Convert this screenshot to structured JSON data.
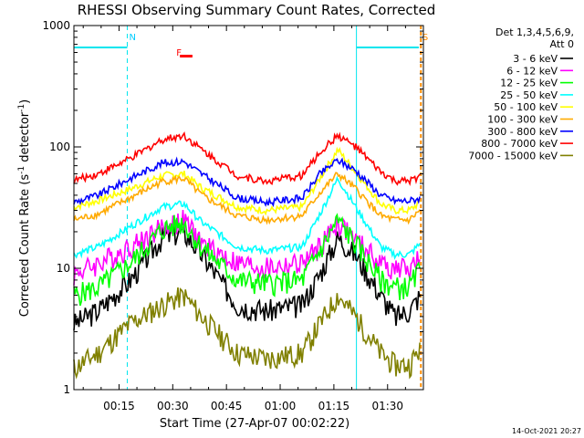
{
  "chart_data": {
    "type": "line",
    "title": "RHESSI Observing Summary Count Rates, Corrected",
    "xlabel": "Start Time (27-Apr-07 00:02:22)",
    "ylabel_main": "Corrected Count Rate (s",
    "ylabel_sup1": "-1",
    "ylabel_mid": " detector",
    "ylabel_sup2": "-1",
    "ylabel_end": ")",
    "x_unit": "minutes after 00:00",
    "xlim": [
      2.4,
      100.0
    ],
    "ylim": [
      1,
      1000
    ],
    "yscale": "log",
    "x_ticks": [
      {
        "value": 15,
        "label": "00:15"
      },
      {
        "value": 30,
        "label": "00:30"
      },
      {
        "value": 45,
        "label": "00:45"
      },
      {
        "value": 60,
        "label": "01:00"
      },
      {
        "value": 75,
        "label": "01:15"
      },
      {
        "value": 90,
        "label": "01:30"
      }
    ],
    "y_ticks": [
      {
        "value": 1,
        "label": "1"
      },
      {
        "value": 10,
        "label": "10"
      },
      {
        "value": 100,
        "label": "100"
      },
      {
        "value": 1000,
        "label": "1000"
      }
    ],
    "legend_header_1": "Det 1,3,4,5,6,9,",
    "legend_header_2": "Att 0",
    "legend_position": "right",
    "timestamp": "14-Oct-2021 20:27",
    "annotations": [
      {
        "text": "N",
        "x": 17.3,
        "color": "#00ccff"
      },
      {
        "text": "F",
        "x": 30.5,
        "color": "#ff0000"
      },
      {
        "text": "S",
        "x": 99.2,
        "color": "#ff8c00"
      }
    ],
    "night_segments": [
      [
        2.4,
        17.3
      ],
      [
        81.3,
        98.7
      ]
    ],
    "night_level": 660,
    "night_vlines": [
      17.3,
      81.3
    ],
    "saa_vline": 99.3,
    "flare_bar": {
      "x_start": 32.0,
      "x_end": 35.5,
      "y": 560
    },
    "series": [
      {
        "name": "3 - 6 keV",
        "color": "#000000",
        "x": [
          2.4,
          9.1,
          18.1,
          27.1,
          33.1,
          38.1,
          48.1,
          56.1,
          66.1,
          71.1,
          76.1,
          81.1,
          88.1,
          92.1,
          96.1,
          99.1
        ],
        "y": [
          3.5,
          4.5,
          8,
          18,
          20,
          13,
          5,
          4.5,
          5,
          9,
          18,
          13,
          6,
          4,
          4.5,
          6
        ]
      },
      {
        "name": "6 - 12 keV",
        "color": "#ff00ff",
        "x": [
          2.4,
          9.1,
          18.1,
          27.1,
          33.1,
          38.1,
          48.1,
          56.1,
          66.1,
          71.1,
          76.1,
          81.1,
          88.1,
          92.1,
          96.1,
          99.1
        ],
        "y": [
          9,
          11,
          15,
          22,
          25,
          16,
          11,
          10,
          11,
          15,
          24,
          17,
          11,
          10,
          10,
          12
        ]
      },
      {
        "name": "12 - 25 keV",
        "color": "#00ff00",
        "x": [
          2.4,
          9.1,
          18.1,
          27.1,
          33.1,
          38.1,
          48.1,
          56.1,
          66.1,
          71.1,
          76.1,
          81.1,
          88.1,
          92.1,
          96.1,
          99.1
        ],
        "y": [
          6,
          7,
          11,
          21,
          24,
          15,
          8,
          7.5,
          8,
          14,
          25,
          16,
          8,
          7,
          7,
          10
        ]
      },
      {
        "name": "25 - 50 keV",
        "color": "#00ffff",
        "x": [
          2.4,
          9.1,
          18.1,
          27.1,
          33.1,
          38.1,
          48.1,
          56.1,
          66.1,
          71.1,
          76.1,
          81.1,
          88.1,
          92.1,
          96.1,
          99.1
        ],
        "y": [
          13,
          15,
          22,
          32,
          34,
          24,
          15,
          14,
          15,
          28,
          55,
          32,
          15,
          13,
          13,
          16
        ]
      },
      {
        "name": "50 - 100 keV",
        "color": "#ffff00",
        "x": [
          2.4,
          9.1,
          18.1,
          27.1,
          33.1,
          38.1,
          48.1,
          56.1,
          66.1,
          71.1,
          76.1,
          81.1,
          88.1,
          92.1,
          96.1,
          99.1
        ],
        "y": [
          32,
          36,
          45,
          58,
          60,
          46,
          32,
          30,
          32,
          55,
          95,
          62,
          34,
          30,
          30,
          35
        ]
      },
      {
        "name": "100 - 300 keV",
        "color": "#ffaa00",
        "x": [
          2.4,
          9.1,
          18.1,
          27.1,
          33.1,
          38.1,
          48.1,
          56.1,
          66.1,
          71.1,
          76.1,
          81.1,
          88.1,
          92.1,
          96.1,
          99.1
        ],
        "y": [
          25,
          28,
          38,
          52,
          55,
          40,
          27,
          25,
          27,
          42,
          60,
          45,
          27,
          25,
          25,
          30
        ]
      },
      {
        "name": "300 - 800 keV",
        "color": "#0000ff",
        "x": [
          2.4,
          9.1,
          18.1,
          27.1,
          33.1,
          38.1,
          48.1,
          56.1,
          66.1,
          71.1,
          76.1,
          81.1,
          88.1,
          92.1,
          96.1,
          99.1
        ],
        "y": [
          35,
          40,
          55,
          74,
          76,
          60,
          38,
          35,
          38,
          60,
          78,
          64,
          40,
          36,
          36,
          38
        ]
      },
      {
        "name": "800 - 7000 keV",
        "color": "#ff0000",
        "x": [
          2.4,
          9.1,
          18.1,
          27.1,
          33.1,
          38.1,
          48.1,
          56.1,
          66.1,
          71.1,
          76.1,
          81.1,
          88.1,
          92.1,
          96.1,
          99.1
        ],
        "y": [
          53,
          60,
          80,
          115,
          125,
          95,
          58,
          52,
          58,
          90,
          125,
          100,
          62,
          52,
          52,
          58
        ]
      },
      {
        "name": "7000 - 15000 keV",
        "color": "#808000",
        "x": [
          2.4,
          9.1,
          18.1,
          27.1,
          33.1,
          38.1,
          48.1,
          56.1,
          66.1,
          71.1,
          76.1,
          81.1,
          88.1,
          92.1,
          96.1,
          99.1
        ],
        "y": [
          1.5,
          2.0,
          3.5,
          5.0,
          6.0,
          4.0,
          2.0,
          1.8,
          2.0,
          3.5,
          6.0,
          4.0,
          2.0,
          1.6,
          1.6,
          2.2
        ]
      }
    ]
  }
}
